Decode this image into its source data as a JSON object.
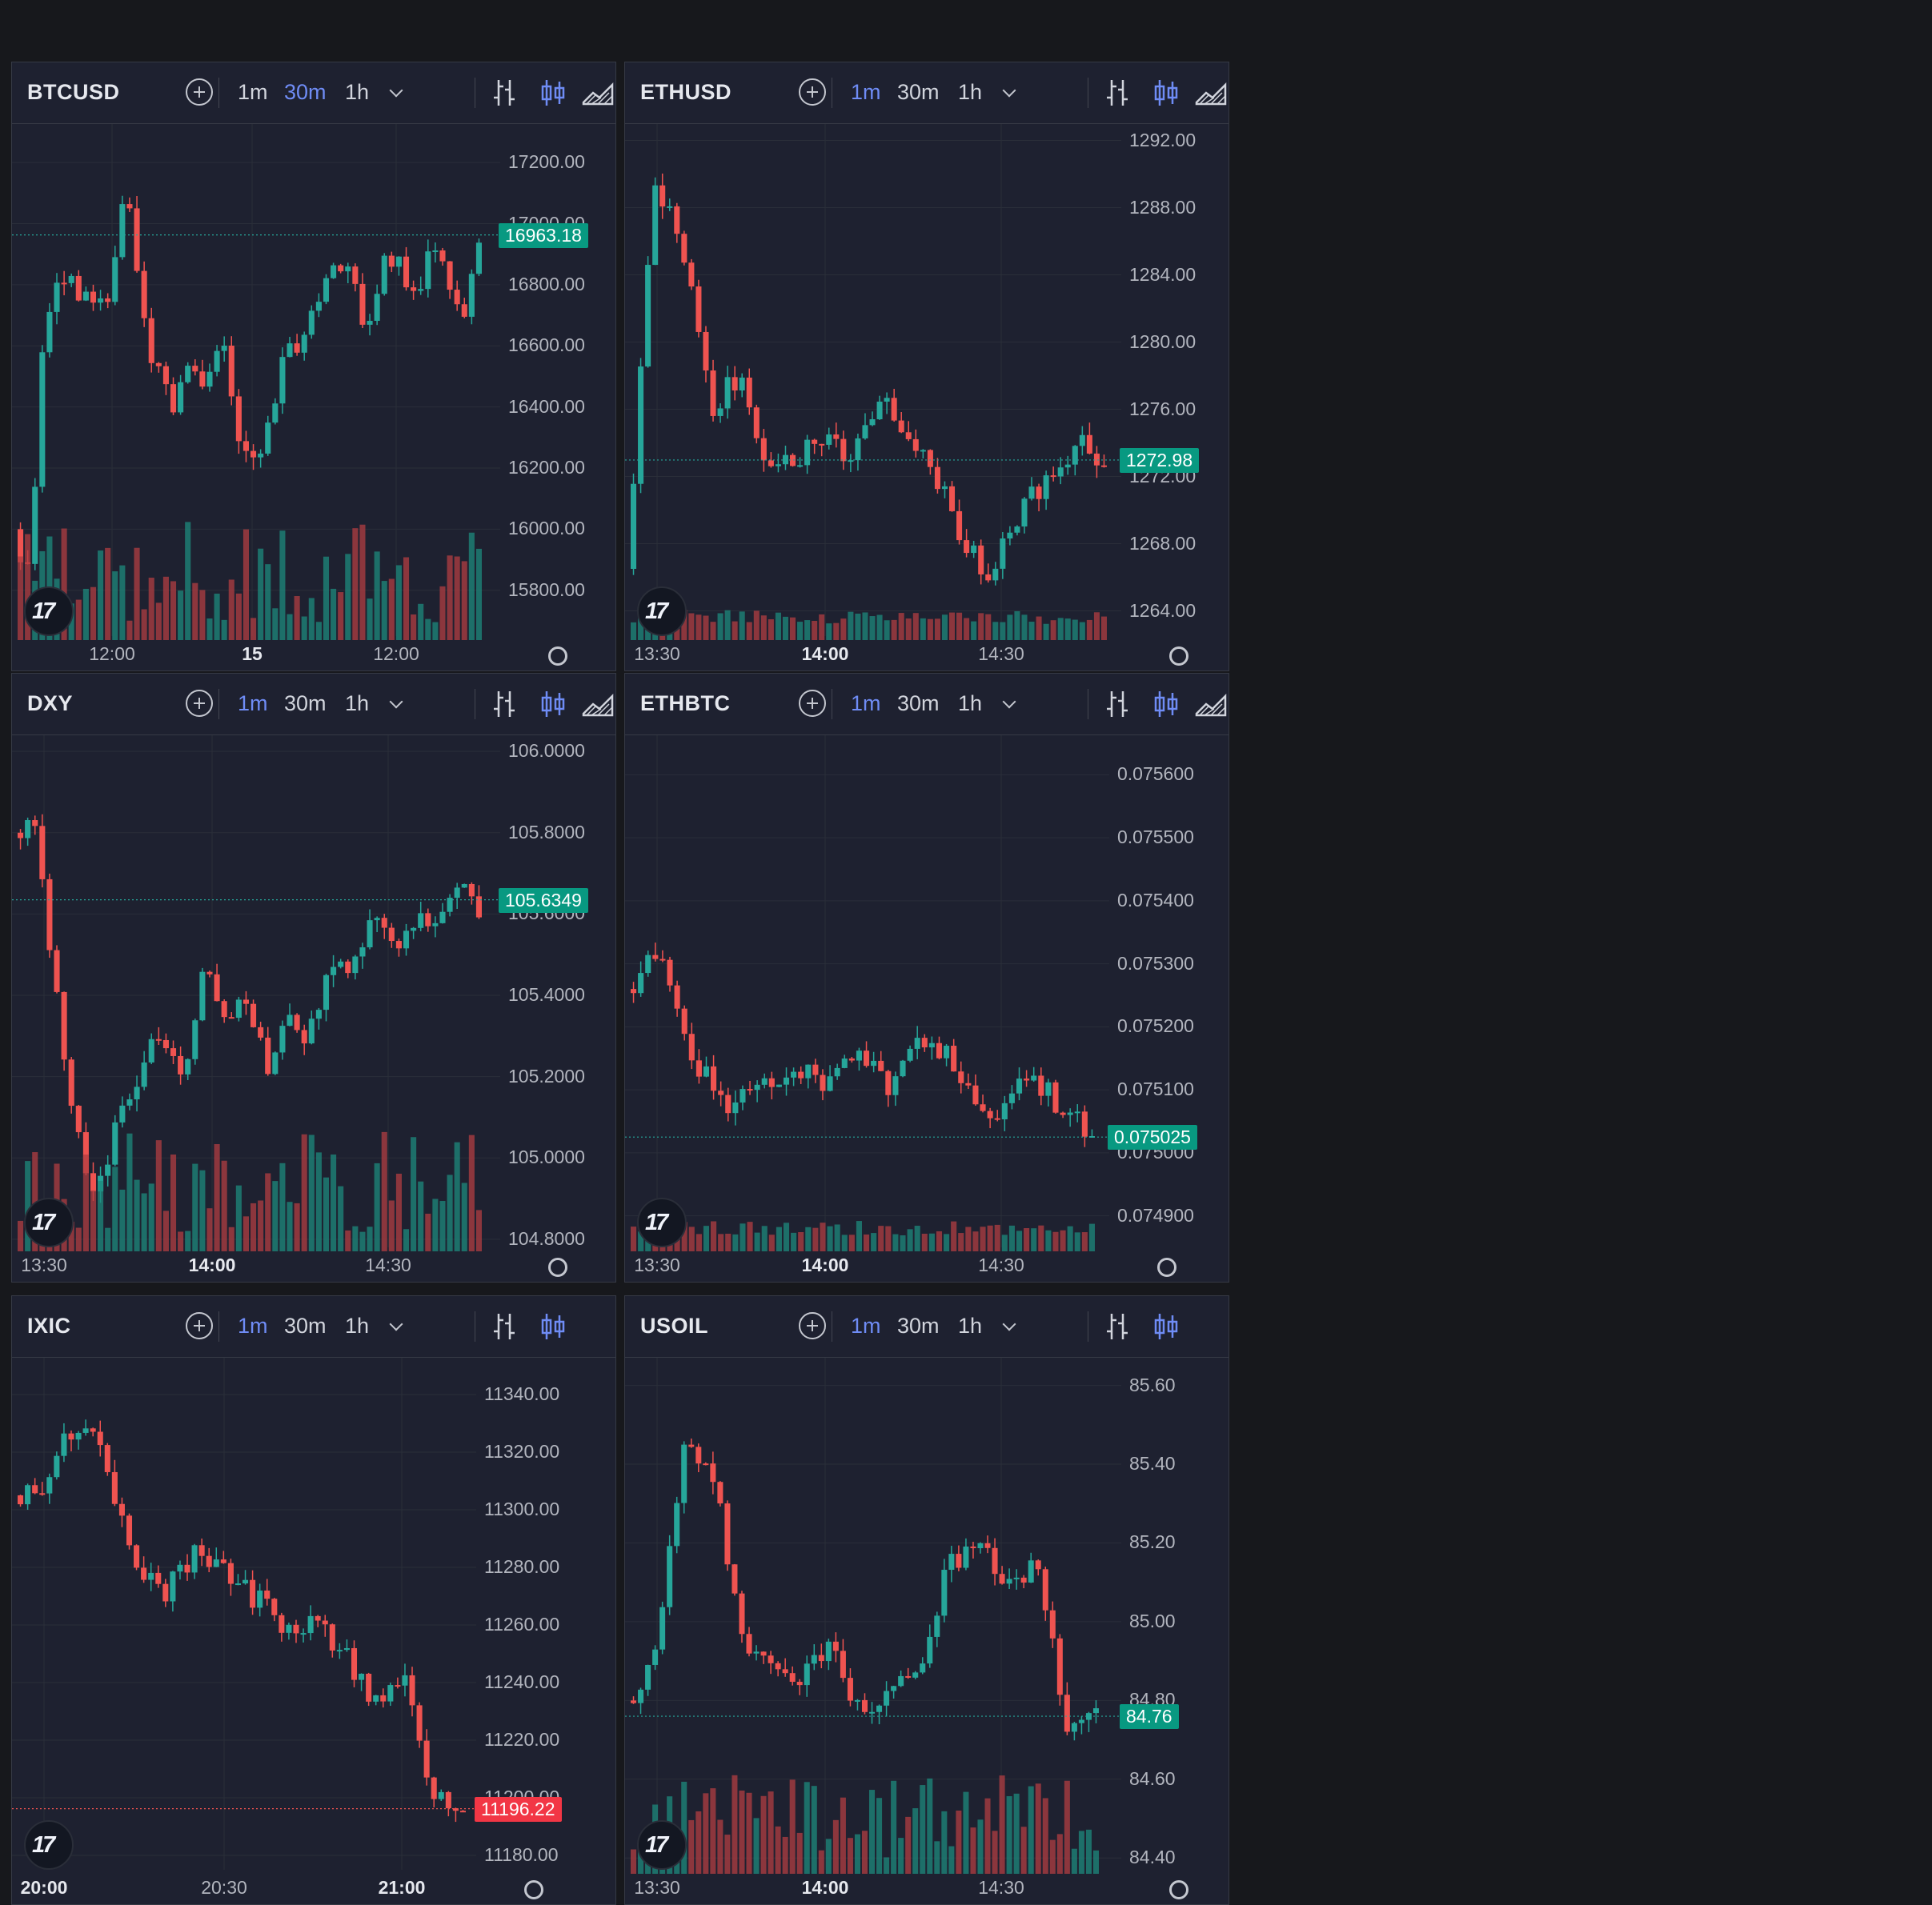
{
  "ui": {
    "timeframes": [
      "1m",
      "30m",
      "1h"
    ],
    "colors": {
      "up": "#26a69a",
      "down": "#ef5350",
      "upVol": "#1e8a7c",
      "downVol": "#b23e42",
      "accent": "#6f8cf5"
    },
    "icons": [
      "add-icon",
      "chevron-down-icon",
      "bar-style-icon",
      "candles-icon",
      "area-icon",
      "tradingview-logo-icon",
      "settings-gear-icon"
    ]
  },
  "panels": [
    {
      "symbol": "BTCUSD",
      "active_tf": "30m",
      "price_labels": [
        "17200.00",
        "17000.00",
        "16800.00",
        "16600.00",
        "16400.00",
        "16200.00",
        "16000.00",
        "15800.00"
      ],
      "time_labels": [
        {
          "text": "12:00",
          "bold": false
        },
        {
          "text": "15",
          "bold": true
        },
        {
          "text": "12:00",
          "bold": false
        }
      ],
      "last_price": "16963.18",
      "last_dir": "up"
    },
    {
      "symbol": "DXY",
      "active_tf": "1m",
      "price_labels": [
        "106.0000",
        "105.8000",
        "105.6000",
        "105.4000",
        "105.2000",
        "105.0000",
        "104.8000"
      ],
      "time_labels": [
        {
          "text": "13:30",
          "bold": false
        },
        {
          "text": "14:00",
          "bold": true
        },
        {
          "text": "14:30",
          "bold": false
        }
      ],
      "last_price": "105.6349",
      "last_dir": "up"
    },
    {
      "symbol": "IXIC",
      "active_tf": "1m",
      "price_labels": [
        "11340.00",
        "11320.00",
        "11300.00",
        "11280.00",
        "11260.00",
        "11240.00",
        "11220.00",
        "11200.00",
        "11180.00"
      ],
      "time_labels": [
        {
          "text": "20:00",
          "bold": true
        },
        {
          "text": "20:30",
          "bold": false
        },
        {
          "text": "21:00",
          "bold": true
        }
      ],
      "last_price": "11196.22",
      "last_dir": "down"
    },
    {
      "symbol": "ETHUSD",
      "active_tf": "1m",
      "price_labels": [
        "1292.00",
        "1288.00",
        "1284.00",
        "1280.00",
        "1276.00",
        "1272.00",
        "1268.00",
        "1264.00"
      ],
      "time_labels": [
        {
          "text": "13:30",
          "bold": false
        },
        {
          "text": "14:00",
          "bold": true
        },
        {
          "text": "14:30",
          "bold": false
        }
      ],
      "last_price": "1272.98",
      "last_dir": "up"
    },
    {
      "symbol": "ETHBTC",
      "active_tf": "1m",
      "price_labels": [
        "0.075600",
        "0.075500",
        "0.075400",
        "0.075300",
        "0.075200",
        "0.075100",
        "0.075000",
        "0.074900"
      ],
      "time_labels": [
        {
          "text": "13:30",
          "bold": false
        },
        {
          "text": "14:00",
          "bold": true
        },
        {
          "text": "14:30",
          "bold": false
        }
      ],
      "last_price": "0.075025",
      "last_dir": "up"
    },
    {
      "symbol": "USOIL",
      "active_tf": "1m",
      "price_labels": [
        "85.60",
        "85.40",
        "85.20",
        "85.00",
        "84.80",
        "84.60",
        "84.40"
      ],
      "time_labels": [
        {
          "text": "13:30",
          "bold": false
        },
        {
          "text": "14:00",
          "bold": true
        },
        {
          "text": "14:30",
          "bold": false
        }
      ],
      "last_price": "84.76",
      "last_dir": "up"
    }
  ],
  "chart_data": [
    {
      "type": "candlestick",
      "title": "BTCUSD",
      "ylim": [
        15650,
        17300
      ],
      "last": 16963.18,
      "path": [
        16000,
        15850,
        16700,
        16850,
        16750,
        16780,
        16720,
        17150,
        16700,
        16500,
        16400,
        16600,
        16450,
        16650,
        16250,
        16200,
        16350,
        16650,
        16600,
        16750,
        16900,
        16850,
        16650,
        16850,
        16900,
        16750,
        16950,
        16800,
        16700,
        16950
      ]
    },
    {
      "type": "candlestick",
      "title": "DXY",
      "ylim": [
        104.78,
        106.02
      ],
      "last": 105.6349,
      "path": [
        105.8,
        105.85,
        105.4,
        105.05,
        104.92,
        105.1,
        105.2,
        105.32,
        105.2,
        105.48,
        105.35,
        105.38,
        105.22,
        105.35,
        105.3,
        105.5,
        105.45,
        105.6,
        105.5,
        105.58,
        105.55,
        105.7,
        105.6
      ]
    },
    {
      "type": "candlestick",
      "title": "IXIC",
      "ylim": [
        11175,
        11350
      ],
      "last": 11196.22,
      "path": [
        11305,
        11310,
        11330,
        11320,
        11280,
        11270,
        11285,
        11280,
        11270,
        11260,
        11262,
        11250,
        11235,
        11242,
        11200,
        11196
      ]
    },
    {
      "type": "candlestick",
      "title": "ETHUSD",
      "ylim": [
        1262.5,
        1292.5
      ],
      "last": 1272.98,
      "path": [
        1266.5,
        1289,
        1286,
        1276,
        1278,
        1272,
        1273,
        1274,
        1273,
        1277,
        1274,
        1272,
        1268,
        1266,
        1270,
        1272,
        1274,
        1273
      ]
    },
    {
      "type": "candlestick",
      "title": "ETHBTC",
      "ylim": [
        0.07485,
        0.07565
      ],
      "last": 0.075025,
      "path": [
        0.07526,
        0.07532,
        0.07515,
        0.07508,
        0.07511,
        0.07514,
        0.0751,
        0.07517,
        0.0751,
        0.07519,
        0.07513,
        0.07505,
        0.07512,
        0.07508,
        0.07503
      ]
    },
    {
      "type": "candlestick",
      "title": "USOIL",
      "ylim": [
        84.37,
        85.65
      ],
      "last": 84.76,
      "path": [
        84.8,
        84.9,
        85.45,
        85.35,
        84.95,
        84.9,
        84.85,
        84.95,
        84.75,
        84.85,
        84.9,
        85.15,
        85.2,
        85.1,
        85.15,
        84.75,
        84.78
      ]
    }
  ]
}
